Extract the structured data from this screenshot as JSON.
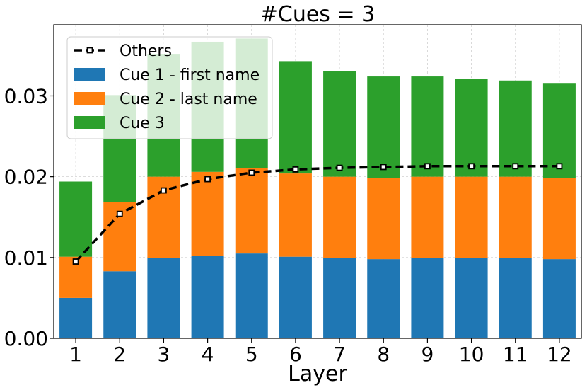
{
  "chart_data": {
    "type": "bar",
    "stacked": true,
    "title": "#Cues = 3",
    "xlabel": "Layer",
    "ylabel": "",
    "categories": [
      "1",
      "2",
      "3",
      "4",
      "5",
      "6",
      "7",
      "8",
      "9",
      "10",
      "11",
      "12"
    ],
    "ylim": [
      0,
      0.0388
    ],
    "yticks": [
      "0.00",
      "0.01",
      "0.02",
      "0.03"
    ],
    "grid": true,
    "legend_position": "top-left",
    "series": [
      {
        "name": "Cue 1 - first name",
        "color": "#1f77b4",
        "values": [
          0.005,
          0.0083,
          0.0099,
          0.0102,
          0.0105,
          0.0101,
          0.0099,
          0.0098,
          0.0099,
          0.0099,
          0.0099,
          0.0098
        ]
      },
      {
        "name": "Cue 2 - last name",
        "color": "#ff7f0e",
        "values": [
          0.0051,
          0.0086,
          0.0101,
          0.0104,
          0.0106,
          0.0103,
          0.0101,
          0.01,
          0.0101,
          0.0101,
          0.0101,
          0.01
        ]
      },
      {
        "name": "Cue 3",
        "color": "#2ca02c",
        "values": [
          0.0093,
          0.0132,
          0.0152,
          0.0161,
          0.016,
          0.0139,
          0.0131,
          0.0126,
          0.0124,
          0.0121,
          0.0119,
          0.0118
        ]
      }
    ],
    "line": {
      "name": "Others",
      "color": "#000000",
      "style": "dashed",
      "values": [
        0.0095,
        0.0154,
        0.0183,
        0.0197,
        0.0205,
        0.0209,
        0.0211,
        0.0212,
        0.0213,
        0.0213,
        0.0213,
        0.0213
      ]
    }
  }
}
